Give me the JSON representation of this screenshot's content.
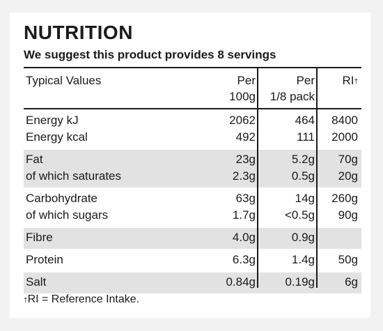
{
  "title": "NUTRITION",
  "subtitle": "We suggest this product provides 8 servings",
  "header": {
    "name": "Typical Values",
    "per100_l1": "Per",
    "per100_l2": "100g",
    "perpack_l1": "Per",
    "perpack_l2": "1/8 pack",
    "ri": "RI",
    "ri_mark": "†"
  },
  "groups": [
    {
      "shade": false,
      "rows": [
        {
          "name": "Energy kJ",
          "per100": "2062",
          "perpack": "464",
          "ri": "8400"
        },
        {
          "name": "Energy kcal",
          "per100": "492",
          "perpack": "111",
          "ri": "2000"
        }
      ]
    },
    {
      "shade": true,
      "rows": [
        {
          "name": "Fat",
          "per100": "23g",
          "perpack": "5.2g",
          "ri": "70g"
        },
        {
          "name": "of which saturates",
          "per100": "2.3g",
          "perpack": "0.5g",
          "ri": "20g"
        }
      ]
    },
    {
      "shade": false,
      "rows": [
        {
          "name": "Carbohydrate",
          "per100": "63g",
          "perpack": "14g",
          "ri": "260g"
        },
        {
          "name": "of which sugars",
          "per100": "1.7g",
          "perpack": "<0.5g",
          "ri": "90g"
        }
      ]
    },
    {
      "shade": true,
      "rows": [
        {
          "name": "Fibre",
          "per100": "4.0g",
          "perpack": "0.9g",
          "ri": ""
        }
      ]
    },
    {
      "shade": false,
      "rows": [
        {
          "name": "Protein",
          "per100": "6.3g",
          "perpack": "1.4g",
          "ri": "50g"
        }
      ]
    },
    {
      "shade": true,
      "rows": [
        {
          "name": "Salt",
          "per100": "0.84g",
          "perpack": "0.19g",
          "ri": "6g"
        }
      ]
    }
  ],
  "footnote": {
    "mark": "†",
    "text": "RI = Reference Intake."
  }
}
